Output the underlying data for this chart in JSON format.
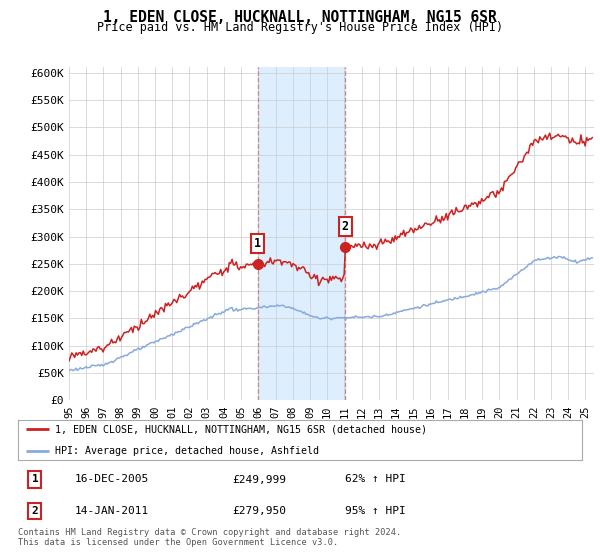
{
  "title": "1, EDEN CLOSE, HUCKNALL, NOTTINGHAM, NG15 6SR",
  "subtitle": "Price paid vs. HM Land Registry's House Price Index (HPI)",
  "ylabel_ticks": [
    "£0",
    "£50K",
    "£100K",
    "£150K",
    "£200K",
    "£250K",
    "£300K",
    "£350K",
    "£400K",
    "£450K",
    "£500K",
    "£550K",
    "£600K"
  ],
  "ylim": [
    0,
    610000
  ],
  "xlim_start": 1995.0,
  "xlim_end": 2025.5,
  "sale1_date": 2005.96,
  "sale1_price": 249999,
  "sale1_label": "1",
  "sale2_date": 2011.04,
  "sale2_price": 279950,
  "sale2_label": "2",
  "legend_line1": "1, EDEN CLOSE, HUCKNALL, NOTTINGHAM, NG15 6SR (detached house)",
  "legend_line2": "HPI: Average price, detached house, Ashfield",
  "table_row1": [
    "1",
    "16-DEC-2005",
    "£249,999",
    "62% ↑ HPI"
  ],
  "table_row2": [
    "2",
    "14-JAN-2011",
    "£279,950",
    "95% ↑ HPI"
  ],
  "footnote": "Contains HM Land Registry data © Crown copyright and database right 2024.\nThis data is licensed under the Open Government Licence v3.0.",
  "red_color": "#cc2222",
  "blue_color": "#88aadd",
  "highlight_color": "#ddeeff",
  "dashed_color": "#cc8888",
  "background_color": "#ffffff",
  "grid_color": "#cccccc"
}
